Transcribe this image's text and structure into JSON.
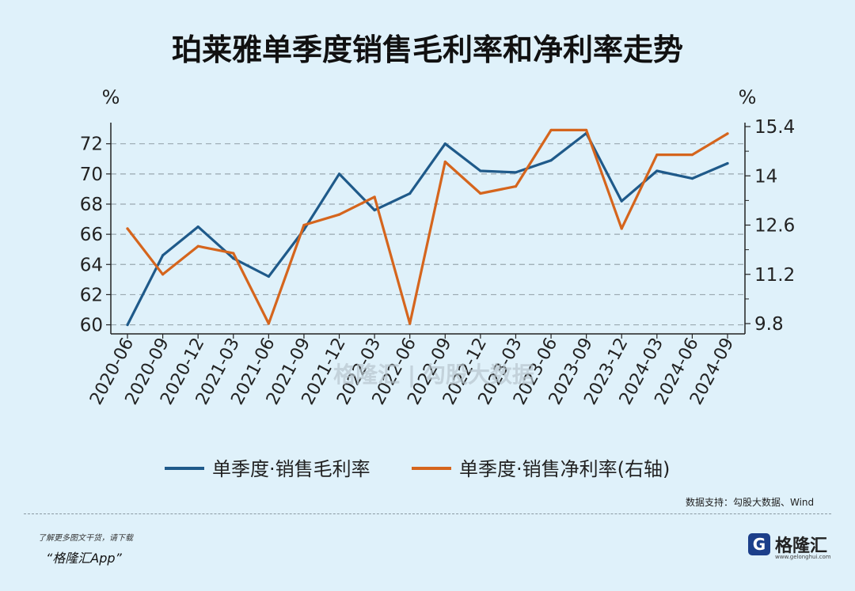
{
  "title": "珀莱雅单季度销售毛利率和净利率走势",
  "footer": {
    "source": "数据支持：勾股大数据、Wind",
    "promo_line": "了解更多图文干货，请下载",
    "promo_app": "“格隆汇App”",
    "logo_mark": "G",
    "logo_name": "格隆汇",
    "logo_url": "www.gelonghui.com"
  },
  "colors": {
    "background": "#dff1fa",
    "gross": "#1f5a8a",
    "net": "#d5651d",
    "grid": "#9aa8b0"
  },
  "chart_data": {
    "type": "line",
    "title": "珀莱雅单季度销售毛利率和净利率走势",
    "x": [
      "2020-06",
      "2020-09",
      "2020-12",
      "2021-03",
      "2021-06",
      "2021-09",
      "2021-12",
      "2022-03",
      "2022-06",
      "2022-09",
      "2022-12",
      "2023-03",
      "2023-06",
      "2023-09",
      "2023-12",
      "2024-03",
      "2024-06",
      "2024-09"
    ],
    "left_axis": {
      "unit": "%",
      "ylim": [
        59.4,
        73.4
      ],
      "ticks": [
        60,
        62,
        64,
        66,
        68,
        70,
        72
      ]
    },
    "right_axis": {
      "unit": "%",
      "ylim": [
        9.8,
        15.4
      ],
      "ticks": [
        "9.8",
        "11.2",
        "12.6",
        "14",
        "15.4"
      ]
    },
    "series": [
      {
        "name": "单季度·销售毛利率",
        "axis": "left",
        "color": "#1f5a8a",
        "values": [
          60.0,
          64.6,
          66.5,
          64.4,
          63.2,
          66.3,
          70.0,
          67.6,
          68.7,
          72.0,
          70.2,
          70.1,
          70.9,
          72.7,
          68.2,
          70.2,
          69.7,
          70.7
        ]
      },
      {
        "name": "单季度·销售净利率(右轴)",
        "axis": "right",
        "color": "#d5651d",
        "values": [
          12.5,
          11.2,
          12.0,
          11.8,
          9.8,
          12.6,
          12.9,
          13.4,
          9.8,
          14.4,
          13.5,
          13.7,
          15.3,
          15.3,
          12.5,
          14.6,
          14.6,
          15.2
        ]
      }
    ],
    "grid": true,
    "legend": "bottom",
    "watermark": "格隆汇 | 勾股大数据"
  }
}
